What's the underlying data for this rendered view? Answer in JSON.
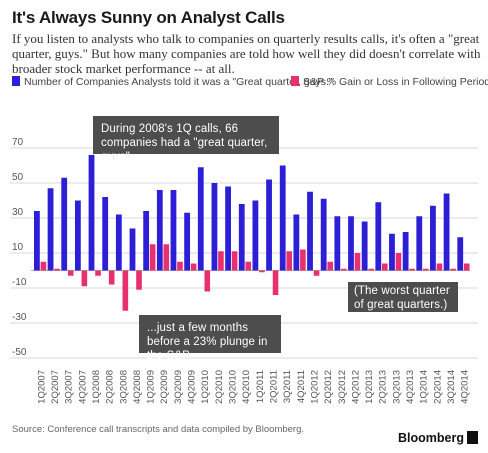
{
  "header": {
    "title": "It's Always Sunny on Analyst Calls",
    "subtitle": "If you listen to analysts who talk to companies on quarterly results calls, it's often a \"great quarter, guys.\" But how many companies are told how well they did doesn't correlate with broader stock market performance -- at all."
  },
  "colors": {
    "blue": "#2d1fd6",
    "pink": "#e8306e",
    "callout_bg": "#4d4d4d"
  },
  "annotations": {
    "top": "During 2008's 1Q calls, 66 companies had a \"great quarter, guys\"...",
    "bottom": "...just a few months before a 23% plunge in the S&P.",
    "right": "(The worst quarter of great quarters.)"
  },
  "footer": {
    "source": "Source: Conference call transcripts and data compiled by Bloomberg.",
    "brand": "Bloomberg"
  },
  "chart_data": {
    "type": "bar",
    "categories": [
      "1Q2007",
      "2Q2007",
      "3Q2007",
      "4Q2007",
      "1Q2008",
      "2Q2008",
      "3Q2008",
      "4Q2008",
      "1Q2009",
      "2Q2009",
      "3Q2009",
      "4Q2009",
      "1Q2010",
      "2Q2010",
      "3Q2010",
      "4Q2010",
      "1Q2011",
      "2Q2011",
      "3Q2011",
      "4Q2011",
      "1Q2012",
      "2Q2012",
      "3Q2012",
      "4Q2012",
      "1Q2013",
      "2Q2013",
      "3Q2013",
      "4Q2013",
      "1Q2014",
      "2Q2014",
      "3Q2014",
      "4Q2014"
    ],
    "series": [
      {
        "name": "Number of Companies Analysts told it was a \"Great quarter, guys.\"",
        "color": "#2d1fd6",
        "values": [
          34,
          47,
          53,
          40,
          66,
          42,
          32,
          24,
          34,
          46,
          46,
          33,
          59,
          50,
          48,
          38,
          40,
          52,
          60,
          32,
          45,
          41,
          31,
          31,
          28,
          39,
          21,
          22,
          31,
          37,
          44,
          19
        ]
      },
      {
        "name": "S&P % Gain or Loss in Following Period",
        "color": "#e8306e",
        "values": [
          5,
          1,
          -3,
          -9,
          -3,
          -8,
          -23,
          -11,
          15,
          15,
          5,
          4,
          -12,
          11,
          11,
          5,
          -1,
          -14,
          11,
          12,
          -3,
          5,
          1,
          10,
          1,
          4,
          10,
          1,
          1,
          4,
          1,
          4
        ]
      }
    ],
    "y_ticks": [
      70,
      50,
      30,
      10,
      -10,
      -30,
      -50
    ],
    "ylim": [
      -50,
      70
    ],
    "grid": true
  }
}
